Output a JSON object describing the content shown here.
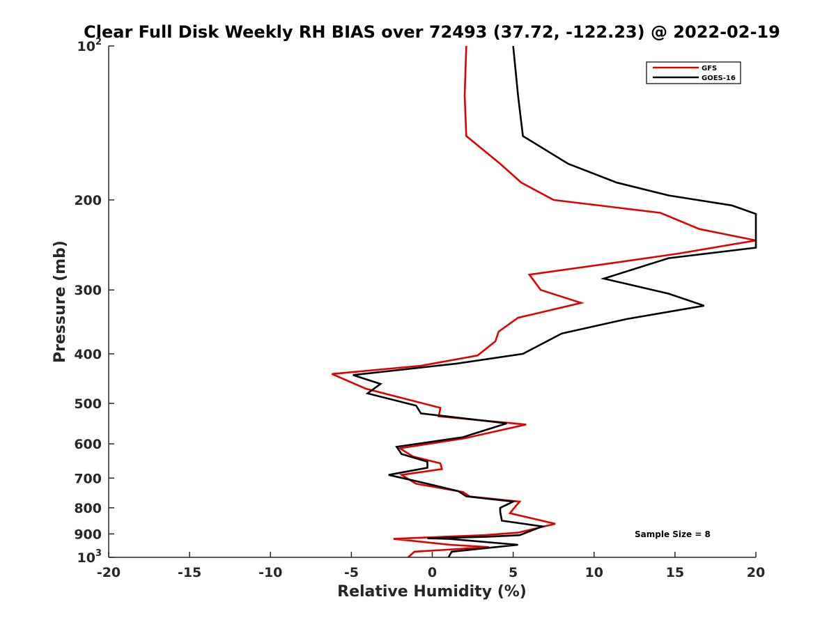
{
  "chart_data": {
    "type": "line",
    "title": "Clear Full Disk Weekly RH BIAS over 72493 (37.72, -122.23) @ 2022-02-19",
    "xlabel": "Relative Humidity (%)",
    "ylabel": "Pressure (mb)",
    "xlim": [
      -20,
      20
    ],
    "ylim": [
      100,
      1000
    ],
    "y_scale": "log",
    "y_reversed": true,
    "x_ticks": [
      -20,
      -15,
      -10,
      -5,
      0,
      5,
      10,
      15,
      20
    ],
    "y_ticks": [
      {
        "value": 100,
        "label": "10",
        "sup": "2"
      },
      {
        "value": 200,
        "label": "200"
      },
      {
        "value": 300,
        "label": "300"
      },
      {
        "value": 400,
        "label": "400"
      },
      {
        "value": 500,
        "label": "500"
      },
      {
        "value": 600,
        "label": "600"
      },
      {
        "value": 700,
        "label": "700"
      },
      {
        "value": 800,
        "label": "800"
      },
      {
        "value": 900,
        "label": "900"
      },
      {
        "value": 1000,
        "label": "10",
        "sup": "3"
      }
    ],
    "grid": false,
    "legend_position": "top-right",
    "series": [
      {
        "name": "GFS",
        "color": "#e00000",
        "points": [
          [
            2.1,
            100
          ],
          [
            2.0,
            125
          ],
          [
            2.1,
            150
          ],
          [
            4.2,
            170
          ],
          [
            5.5,
            185
          ],
          [
            7.5,
            200
          ],
          [
            14.1,
            212
          ],
          [
            16.5,
            228
          ],
          [
            20.0,
            240
          ],
          [
            15.1,
            255
          ],
          [
            11.4,
            265
          ],
          [
            6.0,
            280
          ],
          [
            6.7,
            300
          ],
          [
            9.2,
            318
          ],
          [
            5.3,
            340
          ],
          [
            4.1,
            362
          ],
          [
            3.9,
            378
          ],
          [
            2.8,
            403
          ],
          [
            -0.7,
            422
          ],
          [
            -6.2,
            438
          ],
          [
            -4.1,
            468
          ],
          [
            0.5,
            510
          ],
          [
            0.4,
            530
          ],
          [
            5.8,
            550
          ],
          [
            2.0,
            585
          ],
          [
            -2.0,
            612
          ],
          [
            -1.2,
            635
          ],
          [
            0.5,
            655
          ],
          [
            0.6,
            672
          ],
          [
            -1.9,
            690
          ],
          [
            -1.0,
            718
          ],
          [
            1.9,
            745
          ],
          [
            2.3,
            760
          ],
          [
            5.4,
            778
          ],
          [
            5.0,
            805
          ],
          [
            4.8,
            820
          ],
          [
            7.6,
            860
          ],
          [
            5.3,
            895
          ],
          [
            3.2,
            905
          ],
          [
            -2.4,
            920
          ],
          [
            1.1,
            945
          ],
          [
            3.5,
            955
          ],
          [
            -1.1,
            975
          ],
          [
            -1.5,
            1000
          ]
        ]
      },
      {
        "name": "GOES-16",
        "color": "#000000",
        "points": [
          [
            5.0,
            100
          ],
          [
            5.3,
            125
          ],
          [
            5.6,
            150
          ],
          [
            8.4,
            170
          ],
          [
            11.4,
            185
          ],
          [
            14.6,
            196
          ],
          [
            18.5,
            205
          ],
          [
            20.0,
            213
          ],
          [
            20.0,
            248
          ],
          [
            14.6,
            260
          ],
          [
            10.6,
            285
          ],
          [
            14.6,
            305
          ],
          [
            16.8,
            322
          ],
          [
            12.0,
            342
          ],
          [
            8.0,
            365
          ],
          [
            5.6,
            400
          ],
          [
            1.5,
            418
          ],
          [
            -4.9,
            440
          ],
          [
            -3.2,
            458
          ],
          [
            -4.0,
            478
          ],
          [
            -1.0,
            505
          ],
          [
            -0.7,
            523
          ],
          [
            4.6,
            547
          ],
          [
            1.9,
            582
          ],
          [
            -2.2,
            608
          ],
          [
            -1.9,
            628
          ],
          [
            -0.3,
            650
          ],
          [
            -0.3,
            668
          ],
          [
            -2.7,
            690
          ],
          [
            -0.8,
            712
          ],
          [
            1.6,
            742
          ],
          [
            2.1,
            760
          ],
          [
            5.0,
            778
          ],
          [
            4.2,
            800
          ],
          [
            4.2,
            815
          ],
          [
            4.3,
            848
          ],
          [
            6.8,
            870
          ],
          [
            5.4,
            905
          ],
          [
            3.3,
            912
          ],
          [
            -0.3,
            918
          ],
          [
            1.0,
            920
          ],
          [
            5.3,
            945
          ],
          [
            1.2,
            975
          ],
          [
            1.0,
            1000
          ]
        ]
      }
    ],
    "annotations": [
      {
        "text": "Sample Size = 8",
        "position": "bottom-right"
      }
    ]
  }
}
